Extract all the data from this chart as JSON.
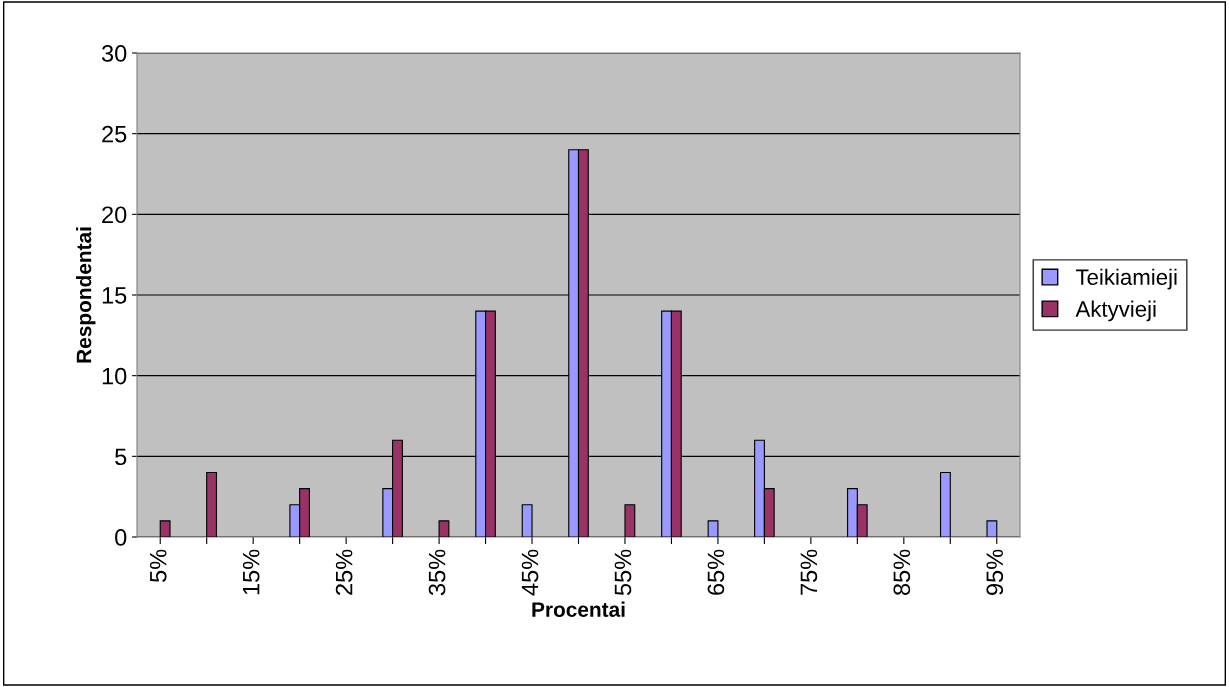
{
  "chart_data": {
    "type": "bar",
    "xlabel": "Procentai",
    "ylabel": "Respondentai",
    "categories": [
      "5%",
      null,
      "15%",
      null,
      "25%",
      null,
      "35%",
      null,
      "45%",
      null,
      "55%",
      null,
      "65%",
      null,
      "75%",
      null,
      "85%",
      null,
      "95%"
    ],
    "series": [
      {
        "name": "Teikiamieji",
        "color": "#9999ff",
        "values": [
          0,
          0,
          0,
          2,
          0,
          3,
          0,
          14,
          2,
          24,
          0,
          14,
          1,
          6,
          0,
          3,
          0,
          4,
          1
        ]
      },
      {
        "name": "Aktyvieji",
        "color": "#993366",
        "values": [
          1,
          4,
          0,
          3,
          0,
          6,
          1,
          14,
          0,
          24,
          2,
          14,
          0,
          3,
          0,
          2,
          0,
          0,
          0
        ]
      }
    ],
    "ylim": [
      0,
      30
    ],
    "yticks": [
      0,
      5,
      10,
      15,
      20,
      25,
      30
    ],
    "grid": "y",
    "legend": "right"
  }
}
